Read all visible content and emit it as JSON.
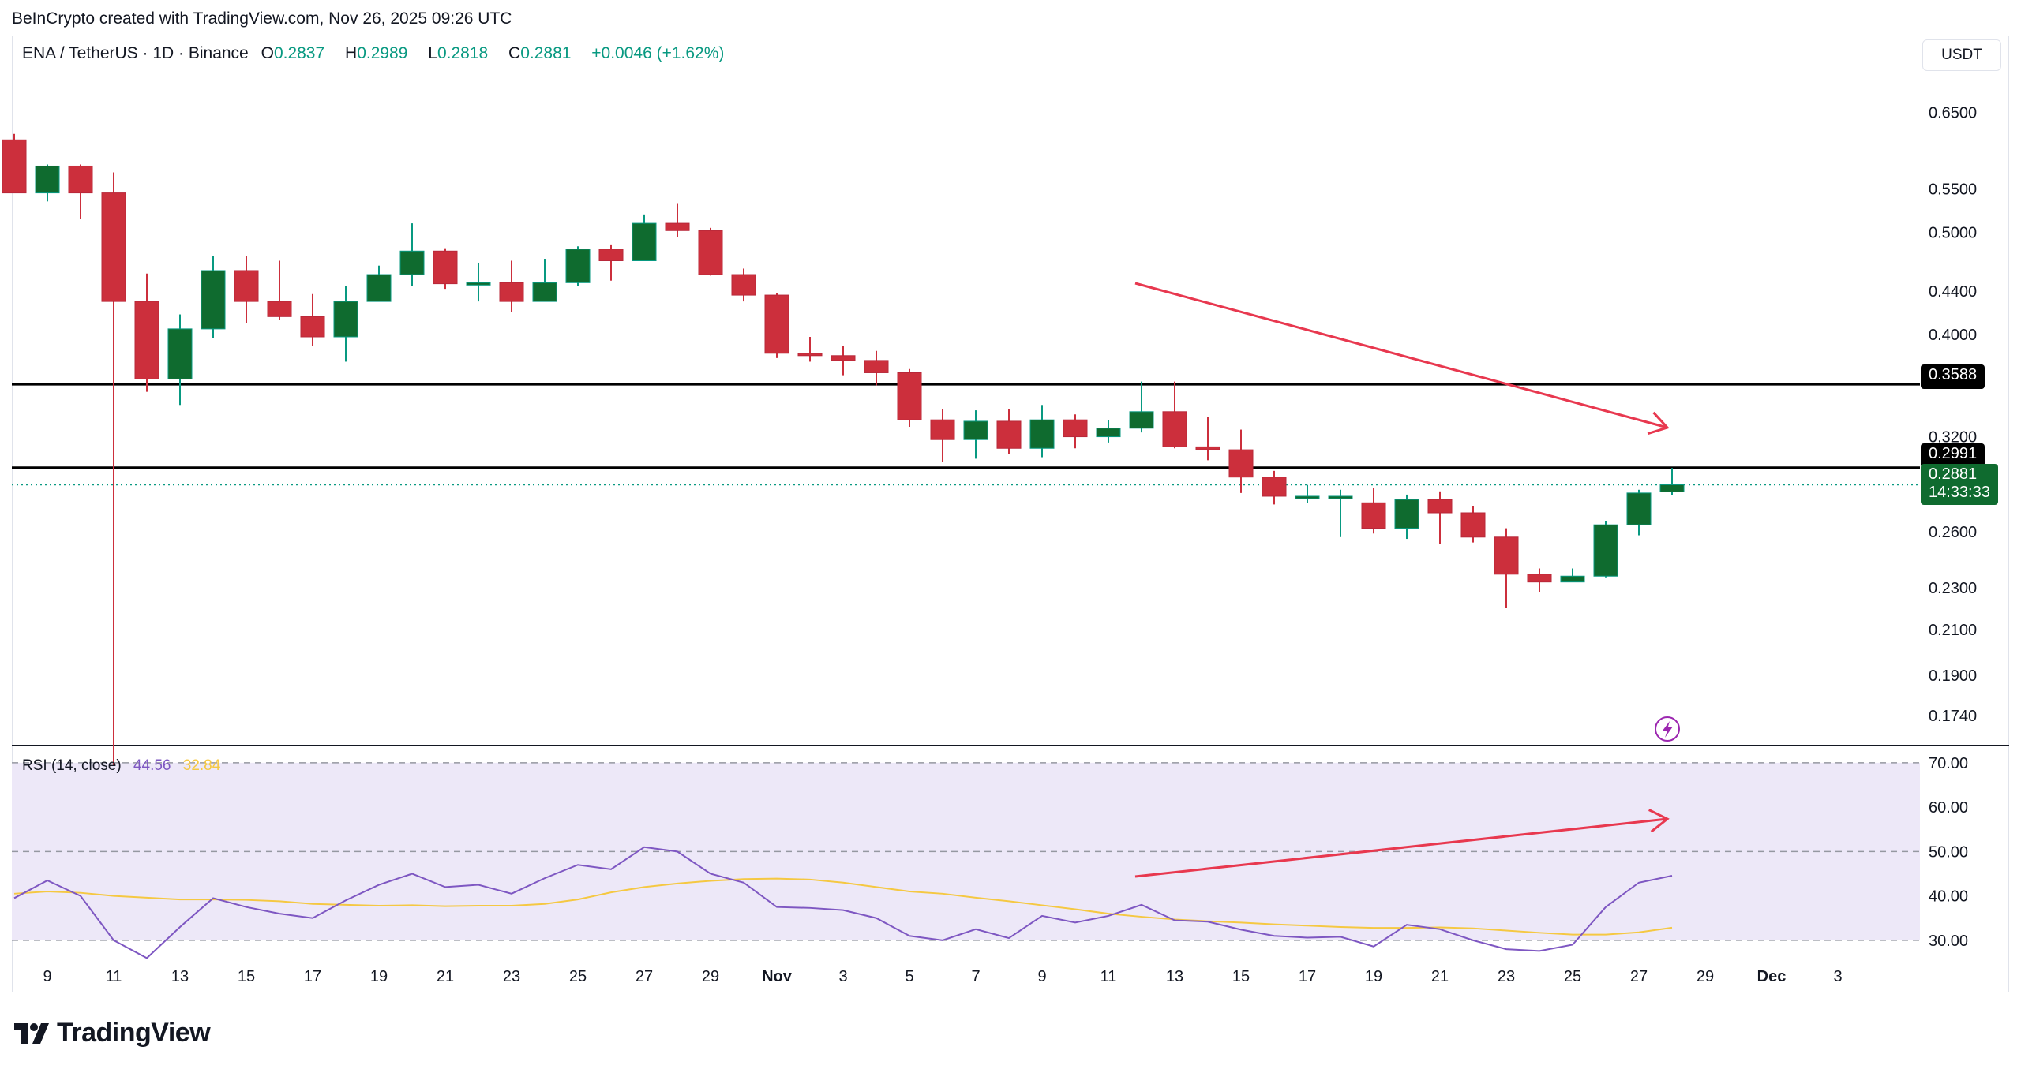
{
  "attribution": "BeInCrypto created with TradingView.com, Nov 26, 2025 09:26 UTC",
  "header": {
    "symbol": "ENA / TetherUS · 1D · Binance",
    "open_label": "O",
    "open": "0.2837",
    "high_label": "H",
    "high": "0.2989",
    "low_label": "L",
    "low": "0.2818",
    "close_label": "C",
    "close": "0.2881",
    "change": "+0.0046 (+1.62%)"
  },
  "currency_button": "USDT",
  "price_tags": {
    "resistance": "0.3588",
    "support": "0.2991",
    "last_price": "0.2881",
    "countdown": "14:33:33"
  },
  "rsi_legend": {
    "title": "RSI (14, close)",
    "rsi_value": "44.56",
    "ma_value": "32.84"
  },
  "brand": {
    "name": "TradingView"
  },
  "colors": {
    "up": "#089981",
    "up_body": "#0f6b2f",
    "down": "#cc2f3c",
    "rsi": "#7e57c2",
    "rsi_ma": "#f5c842",
    "annotation": "#e8384f"
  },
  "chart_data": [
    {
      "type": "candlestick",
      "title": "ENA / TetherUS · 1D · Binance",
      "y_scale": "log",
      "ylim": [
        0.163,
        0.72
      ],
      "y_ticks": [
        "0.6500",
        "0.5500",
        "0.5000",
        "0.4400",
        "0.4000",
        "0.3200",
        "0.2600",
        "0.2300",
        "0.2100",
        "0.1900",
        "0.1740"
      ],
      "x_ticks": [
        "9",
        "11",
        "13",
        "15",
        "17",
        "19",
        "21",
        "23",
        "25",
        "27",
        "29",
        "Nov",
        "3",
        "5",
        "7",
        "9",
        "11",
        "13",
        "15",
        "17",
        "19",
        "21",
        "23",
        "25",
        "27",
        "29",
        "Dec",
        "3"
      ],
      "horizontal_lines": [
        0.3588,
        0.2991
      ],
      "last_price": 0.2881,
      "candles": [
        {
          "date": "Oct 8",
          "o": 0.612,
          "h": 0.62,
          "l": 0.545,
          "c": 0.545
        },
        {
          "date": "Oct 9",
          "o": 0.545,
          "h": 0.58,
          "l": 0.535,
          "c": 0.578
        },
        {
          "date": "Oct 10",
          "o": 0.578,
          "h": 0.58,
          "l": 0.515,
          "c": 0.545
        },
        {
          "date": "Oct 11",
          "o": 0.545,
          "h": 0.57,
          "l": 0.156,
          "c": 0.43
        },
        {
          "date": "Oct 12",
          "o": 0.43,
          "h": 0.457,
          "l": 0.353,
          "c": 0.363
        },
        {
          "date": "Oct 13",
          "o": 0.363,
          "h": 0.418,
          "l": 0.343,
          "c": 0.405
        },
        {
          "date": "Oct 14",
          "o": 0.405,
          "h": 0.475,
          "l": 0.397,
          "c": 0.46
        },
        {
          "date": "Oct 15",
          "o": 0.46,
          "h": 0.475,
          "l": 0.41,
          "c": 0.43
        },
        {
          "date": "Oct 16",
          "o": 0.43,
          "h": 0.47,
          "l": 0.413,
          "c": 0.416
        },
        {
          "date": "Oct 17",
          "o": 0.416,
          "h": 0.437,
          "l": 0.39,
          "c": 0.398
        },
        {
          "date": "Oct 18",
          "o": 0.398,
          "h": 0.445,
          "l": 0.377,
          "c": 0.43
        },
        {
          "date": "Oct 19",
          "o": 0.43,
          "h": 0.465,
          "l": 0.43,
          "c": 0.456
        },
        {
          "date": "Oct 20",
          "o": 0.456,
          "h": 0.51,
          "l": 0.445,
          "c": 0.48
        },
        {
          "date": "Oct 21",
          "o": 0.48,
          "h": 0.483,
          "l": 0.442,
          "c": 0.447
        },
        {
          "date": "Oct 22",
          "o": 0.447,
          "h": 0.468,
          "l": 0.43,
          "c": 0.448
        },
        {
          "date": "Oct 23",
          "o": 0.448,
          "h": 0.47,
          "l": 0.42,
          "c": 0.43
        },
        {
          "date": "Oct 24",
          "o": 0.43,
          "h": 0.472,
          "l": 0.43,
          "c": 0.448
        },
        {
          "date": "Oct 25",
          "o": 0.448,
          "h": 0.485,
          "l": 0.445,
          "c": 0.482
        },
        {
          "date": "Oct 26",
          "o": 0.482,
          "h": 0.487,
          "l": 0.45,
          "c": 0.47
        },
        {
          "date": "Oct 27",
          "o": 0.47,
          "h": 0.52,
          "l": 0.47,
          "c": 0.51
        },
        {
          "date": "Oct 28",
          "o": 0.51,
          "h": 0.533,
          "l": 0.495,
          "c": 0.502
        },
        {
          "date": "Oct 29",
          "o": 0.502,
          "h": 0.505,
          "l": 0.455,
          "c": 0.456
        },
        {
          "date": "Oct 30",
          "o": 0.456,
          "h": 0.462,
          "l": 0.43,
          "c": 0.436
        },
        {
          "date": "Oct 31",
          "o": 0.436,
          "h": 0.438,
          "l": 0.38,
          "c": 0.384
        },
        {
          "date": "Nov 1",
          "o": 0.384,
          "h": 0.398,
          "l": 0.377,
          "c": 0.382
        },
        {
          "date": "Nov 2",
          "o": 0.382,
          "h": 0.39,
          "l": 0.366,
          "c": 0.378
        },
        {
          "date": "Nov 3",
          "o": 0.378,
          "h": 0.386,
          "l": 0.358,
          "c": 0.368
        },
        {
          "date": "Nov 4",
          "o": 0.368,
          "h": 0.371,
          "l": 0.327,
          "c": 0.332
        },
        {
          "date": "Nov 5",
          "o": 0.332,
          "h": 0.34,
          "l": 0.303,
          "c": 0.318
        },
        {
          "date": "Nov 6",
          "o": 0.318,
          "h": 0.339,
          "l": 0.305,
          "c": 0.331
        },
        {
          "date": "Nov 7",
          "o": 0.331,
          "h": 0.34,
          "l": 0.308,
          "c": 0.312
        },
        {
          "date": "Nov 8",
          "o": 0.312,
          "h": 0.343,
          "l": 0.306,
          "c": 0.332
        },
        {
          "date": "Nov 9",
          "o": 0.332,
          "h": 0.336,
          "l": 0.312,
          "c": 0.32
        },
        {
          "date": "Nov 10",
          "o": 0.32,
          "h": 0.332,
          "l": 0.316,
          "c": 0.326
        },
        {
          "date": "Nov 11",
          "o": 0.326,
          "h": 0.361,
          "l": 0.323,
          "c": 0.338
        },
        {
          "date": "Nov 12",
          "o": 0.338,
          "h": 0.361,
          "l": 0.312,
          "c": 0.313
        },
        {
          "date": "Nov 13",
          "o": 0.313,
          "h": 0.334,
          "l": 0.304,
          "c": 0.311
        },
        {
          "date": "Nov 14",
          "o": 0.311,
          "h": 0.325,
          "l": 0.283,
          "c": 0.293
        },
        {
          "date": "Nov 15",
          "o": 0.293,
          "h": 0.297,
          "l": 0.276,
          "c": 0.281
        },
        {
          "date": "Nov 16",
          "o": 0.281,
          "h": 0.288,
          "l": 0.277,
          "c": 0.281
        },
        {
          "date": "Nov 17",
          "o": 0.281,
          "h": 0.285,
          "l": 0.257,
          "c": 0.281
        },
        {
          "date": "Nov 18",
          "o": 0.277,
          "h": 0.286,
          "l": 0.259,
          "c": 0.262
        },
        {
          "date": "Nov 19",
          "o": 0.262,
          "h": 0.282,
          "l": 0.256,
          "c": 0.279
        },
        {
          "date": "Nov 20",
          "o": 0.279,
          "h": 0.284,
          "l": 0.253,
          "c": 0.271
        },
        {
          "date": "Nov 21",
          "o": 0.271,
          "h": 0.275,
          "l": 0.254,
          "c": 0.257
        },
        {
          "date": "Nov 22",
          "o": 0.257,
          "h": 0.262,
          "l": 0.22,
          "c": 0.237
        },
        {
          "date": "Nov 23",
          "o": 0.237,
          "h": 0.24,
          "l": 0.228,
          "c": 0.233
        },
        {
          "date": "Nov 24",
          "o": 0.233,
          "h": 0.24,
          "l": 0.233,
          "c": 0.236
        },
        {
          "date": "Nov 25",
          "o": 0.236,
          "h": 0.266,
          "l": 0.235,
          "c": 0.264
        },
        {
          "date": "Nov 26",
          "o": 0.264,
          "h": 0.285,
          "l": 0.258,
          "c": 0.283
        },
        {
          "date": "Nov 27",
          "o": 0.2837,
          "h": 0.2989,
          "l": 0.2818,
          "c": 0.2881
        }
      ]
    },
    {
      "type": "line",
      "title": "RSI (14, close)",
      "ylim": [
        25,
        73
      ],
      "y_ticks": [
        "70.00",
        "60.00",
        "50.00",
        "40.00",
        "30.00"
      ],
      "bands": [
        70,
        50,
        30
      ],
      "series": [
        {
          "name": "RSI",
          "values": [
            39.5,
            43.5,
            40,
            30,
            26,
            33,
            39.5,
            37.5,
            36,
            35,
            39,
            42.5,
            45,
            42,
            42.5,
            40.5,
            44,
            47,
            46,
            51,
            50,
            45,
            43,
            37.5,
            37.3,
            36.8,
            35,
            31,
            30,
            32.5,
            30.5,
            35.5,
            34,
            35.5,
            38,
            34.5,
            34.2,
            32.4,
            31,
            30.6,
            30.8,
            28.6,
            33.5,
            32.5,
            30,
            28,
            27.6,
            29,
            37.5,
            43,
            44.56
          ]
        },
        {
          "name": "RSI-based MA",
          "values": [
            40.5,
            41,
            40.7,
            40,
            39.6,
            39.2,
            39.2,
            39.1,
            38.8,
            38.2,
            38,
            37.8,
            37.9,
            37.7,
            37.8,
            37.8,
            38.2,
            39.2,
            40.8,
            42,
            42.8,
            43.4,
            43.8,
            43.9,
            43.7,
            43,
            42,
            41,
            40.5,
            39.6,
            38.8,
            37.9,
            37,
            36,
            35.3,
            34.7,
            34.3,
            34,
            33.6,
            33.3,
            33,
            32.8,
            32.8,
            32.9,
            32.7,
            32.2,
            31.7,
            31.3,
            31.3,
            31.8,
            32.84
          ]
        }
      ]
    }
  ]
}
